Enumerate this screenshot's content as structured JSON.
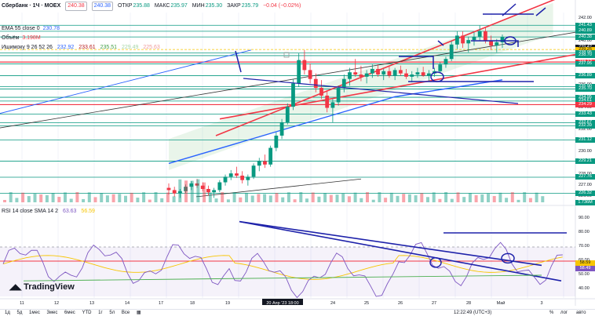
{
  "header": {
    "title": "Сбербанк · 1Ч · MOEX",
    "ohlc": [
      {
        "label": "ОТКР",
        "value": "235.88"
      },
      {
        "label": "МАКС",
        "value": "235.97"
      },
      {
        "label": "МИН",
        "value": "235.30"
      },
      {
        "label": "ЗАКР",
        "value": "235.79"
      }
    ],
    "change": "−0.04 (−0.02%)",
    "price_boxes": [
      "240.38",
      "240.38"
    ]
  },
  "indicators": {
    "ema": {
      "label": "EMA 55 close 0",
      "value": "230.78",
      "color": "#2962ff"
    },
    "volume": {
      "label": "Объём",
      "value": "3.198M",
      "color": "#f23645"
    },
    "ichimoku": {
      "label": "Ишимоку 9 26 52 26",
      "values": [
        "232.92",
        "233.61",
        "235.51",
        "229.49",
        "225.63"
      ]
    }
  },
  "rsi_legend": {
    "label": "RSI 14 close SMA 14 2",
    "values": [
      "63.63",
      "56.59"
    ]
  },
  "price_axis": {
    "ticks": [
      "242.00",
      "240.00",
      "238.00",
      "236.00",
      "234.00",
      "232.00",
      "230.00",
      "228.00",
      "227.00",
      "226.00"
    ],
    "tags": [
      {
        "text": "241.43",
        "color": "#089981"
      },
      {
        "text": "240.89",
        "color": "#089981"
      },
      {
        "text": "240.38",
        "color": "#089981"
      },
      {
        "text": "239.42",
        "color": "#131722"
      },
      {
        "text": "239.25",
        "color": "#f7c500"
      },
      {
        "text": "238.95",
        "color": "#089981"
      },
      {
        "text": "238.70",
        "color": "#089981"
      },
      {
        "text": "238.12",
        "color": "#f23645"
      },
      {
        "text": "237.95",
        "color": "#089981"
      },
      {
        "text": "236.89",
        "color": "#089981"
      },
      {
        "text": "235.90",
        "color": "#089981"
      },
      {
        "text": "235.70",
        "color": "#089981"
      },
      {
        "text": "234.95",
        "color": "#089981"
      },
      {
        "text": "234.61",
        "color": "#089981"
      },
      {
        "text": "234.29",
        "color": "#f23645"
      },
      {
        "text": "233.43",
        "color": "#089981"
      },
      {
        "text": "232.67",
        "color": "#089981"
      },
      {
        "text": "232.39",
        "color": "#089981"
      },
      {
        "text": "231.12",
        "color": "#089981"
      },
      {
        "text": "229.21",
        "color": "#089981"
      },
      {
        "text": "227.76",
        "color": "#089981"
      },
      {
        "text": "226.32",
        "color": "#089981"
      },
      {
        "text": "1.736M",
        "color": "#089981"
      }
    ]
  },
  "rsi_axis": {
    "ticks": [
      "90.00",
      "80.00",
      "70.00",
      "60.00",
      "50.00",
      "40.00"
    ],
    "tags": [
      {
        "text": "58.59",
        "color": "#f7c500"
      },
      {
        "text": "58.49",
        "color": "#7e57c2"
      }
    ]
  },
  "time_axis": {
    "labels": [
      "11",
      "12",
      "13",
      "14",
      "17",
      "18",
      "19",
      "20 Апр '23  18:00",
      "24",
      "25",
      "26",
      "27",
      "28",
      "Май",
      "3"
    ],
    "crosshair_label": "20 Апр '23  18:00"
  },
  "branding": "TradingView",
  "bottom_bar": {
    "ranges": [
      "1д",
      "5д",
      "1мес",
      "3мес",
      "6мес",
      "YTD",
      "1г",
      "5л",
      "Все"
    ],
    "clock": "12:22:49 (UTC+3)",
    "right": [
      "%",
      "лог",
      "авто"
    ]
  },
  "chart_data": {
    "type": "candlestick",
    "price_range": [
      225.5,
      243.0
    ],
    "rsi_range": [
      35,
      95
    ],
    "rsi_levels": [
      70,
      30
    ],
    "horizontal_levels": [
      241.43,
      240.89,
      240.38,
      239.25,
      238.95,
      238.7,
      238.12,
      237.95,
      236.89,
      235.9,
      235.7,
      234.95,
      234.61,
      234.29,
      233.43,
      232.67,
      232.39,
      231.12,
      229.21,
      227.76,
      226.32
    ],
    "candles": [
      [
        0,
        226.8,
        227.2,
        226.2,
        226.6
      ],
      [
        1,
        226.6,
        226.9,
        226.0,
        226.3
      ],
      [
        2,
        226.3,
        226.7,
        225.9,
        226.5
      ],
      [
        3,
        226.5,
        227.1,
        226.3,
        226.9
      ],
      [
        4,
        226.9,
        227.4,
        226.6,
        227.2
      ],
      [
        5,
        227.2,
        227.6,
        226.8,
        227.0
      ],
      [
        6,
        227.0,
        227.3,
        226.5,
        226.7
      ],
      [
        7,
        226.7,
        227.0,
        226.1,
        226.4
      ],
      [
        8,
        226.4,
        226.8,
        225.9,
        226.6
      ],
      [
        9,
        226.6,
        227.5,
        226.4,
        227.3
      ],
      [
        10,
        227.3,
        228.0,
        227.0,
        227.8
      ],
      [
        11,
        227.8,
        228.4,
        227.5,
        228.1
      ],
      [
        12,
        228.1,
        228.7,
        227.7,
        227.9
      ],
      [
        13,
        227.9,
        228.3,
        227.2,
        227.5
      ],
      [
        14,
        227.5,
        228.0,
        227.0,
        227.8
      ],
      [
        15,
        227.8,
        229.0,
        227.6,
        228.8
      ],
      [
        16,
        228.8,
        229.5,
        228.3,
        229.2
      ],
      [
        17,
        229.2,
        229.8,
        228.6,
        228.9
      ],
      [
        18,
        228.9,
        230.6,
        228.7,
        230.4
      ],
      [
        19,
        230.4,
        231.8,
        230.1,
        231.5
      ],
      [
        20,
        231.5,
        233.0,
        231.2,
        232.7
      ],
      [
        21,
        232.7,
        234.4,
        232.5,
        234.1
      ],
      [
        22,
        234.1,
        236.6,
        233.8,
        236.2
      ],
      [
        23,
        236.2,
        238.9,
        235.9,
        238.3
      ],
      [
        24,
        238.3,
        239.2,
        237.0,
        237.4
      ],
      [
        25,
        237.4,
        238.0,
        236.2,
        236.6
      ],
      [
        26,
        236.6,
        237.1,
        235.4,
        235.8
      ],
      [
        27,
        235.8,
        236.5,
        234.8,
        235.1
      ],
      [
        28,
        235.1,
        235.6,
        233.6,
        234.0
      ],
      [
        29,
        234.0,
        234.8,
        232.7,
        234.5
      ],
      [
        30,
        234.5,
        236.0,
        234.2,
        235.8
      ],
      [
        31,
        235.8,
        237.0,
        235.4,
        236.6
      ],
      [
        32,
        236.6,
        237.6,
        236.0,
        237.2
      ],
      [
        33,
        237.2,
        238.4,
        236.8,
        237.0
      ],
      [
        34,
        237.0,
        237.8,
        236.4,
        236.8
      ],
      [
        35,
        236.8,
        237.4,
        236.2,
        237.1
      ],
      [
        36,
        237.1,
        237.9,
        236.7,
        237.5
      ],
      [
        37,
        237.5,
        237.9,
        236.8,
        237.0
      ],
      [
        38,
        237.0,
        237.5,
        236.5,
        237.3
      ],
      [
        39,
        237.3,
        237.7,
        236.7,
        236.9
      ],
      [
        40,
        236.9,
        237.6,
        236.5,
        237.4
      ],
      [
        41,
        237.4,
        237.8,
        236.9,
        237.1
      ],
      [
        42,
        237.1,
        237.5,
        236.6,
        236.8
      ],
      [
        43,
        236.8,
        237.3,
        236.3,
        237.0
      ],
      [
        44,
        237.0,
        237.6,
        236.7,
        237.2
      ],
      [
        45,
        237.2,
        237.7,
        236.8,
        236.9
      ],
      [
        46,
        236.9,
        237.4,
        236.4,
        237.1
      ],
      [
        47,
        237.1,
        237.6,
        236.8,
        237.3
      ],
      [
        48,
        237.3,
        238.1,
        237.1,
        237.9
      ],
      [
        49,
        237.9,
        238.6,
        237.6,
        238.4
      ],
      [
        50,
        238.4,
        240.0,
        238.2,
        239.7
      ],
      [
        51,
        239.7,
        240.9,
        239.3,
        240.5
      ],
      [
        52,
        240.5,
        240.9,
        239.4,
        239.8
      ],
      [
        53,
        239.8,
        240.4,
        239.0,
        240.1
      ],
      [
        54,
        240.1,
        240.8,
        239.6,
        240.4
      ],
      [
        55,
        240.4,
        241.4,
        240.0,
        240.9
      ],
      [
        56,
        240.9,
        241.2,
        239.8,
        240.0
      ],
      [
        57,
        240.0,
        240.5,
        239.2,
        239.6
      ],
      [
        58,
        239.6,
        240.2,
        239.0,
        239.9
      ],
      [
        59,
        239.9,
        240.6,
        239.4,
        240.38
      ]
    ]
  }
}
